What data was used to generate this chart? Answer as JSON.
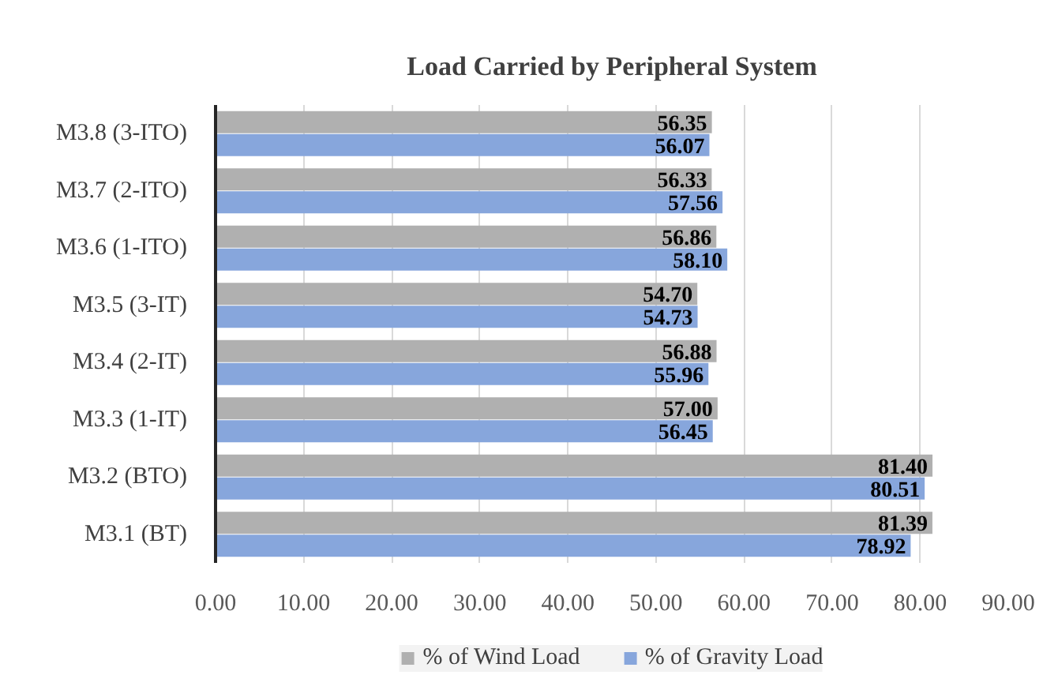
{
  "chart_data": {
    "type": "bar",
    "orientation": "horizontal",
    "title": "Load Carried by Peripheral System",
    "categories": [
      "M3.8 (3-ITO)",
      "M3.7 (2-ITO)",
      "M3.6 (1-ITO)",
      "M3.5 (3-IT)",
      "M3.4 (2-IT)",
      "M3.3 (1-IT)",
      "M3.2 (BTO)",
      "M3.1 (BT)"
    ],
    "series": [
      {
        "name": "% of Wind Load",
        "color": "#b0b0b0",
        "values": [
          56.35,
          56.33,
          56.86,
          54.7,
          56.88,
          57.0,
          81.4,
          81.39
        ],
        "value_labels": [
          "56.35",
          "56.33",
          "56.86",
          "54.70",
          "56.88",
          "57.00",
          "81.40",
          "81.39"
        ]
      },
      {
        "name": "% of Gravity Load",
        "color": "#87a6dc",
        "values": [
          56.07,
          57.56,
          58.1,
          54.73,
          55.96,
          56.45,
          80.51,
          78.92
        ],
        "value_labels": [
          "56.07",
          "57.56",
          "58.10",
          "54.73",
          "55.96",
          "56.45",
          "80.51",
          "78.92"
        ]
      }
    ],
    "xlim": [
      0,
      90
    ],
    "xticks": [
      {
        "value": 0,
        "label": "0.00"
      },
      {
        "value": 10,
        "label": "10.00"
      },
      {
        "value": 20,
        "label": "20.00"
      },
      {
        "value": 30,
        "label": "30.00"
      },
      {
        "value": 40,
        "label": "40.00"
      },
      {
        "value": 50,
        "label": "50.00"
      },
      {
        "value": 60,
        "label": "60.00"
      },
      {
        "value": 70,
        "label": "70.00"
      },
      {
        "value": 80,
        "label": "80.00"
      },
      {
        "value": 90,
        "label": "90.00"
      }
    ],
    "grid": "x",
    "legend": "bottom"
  }
}
